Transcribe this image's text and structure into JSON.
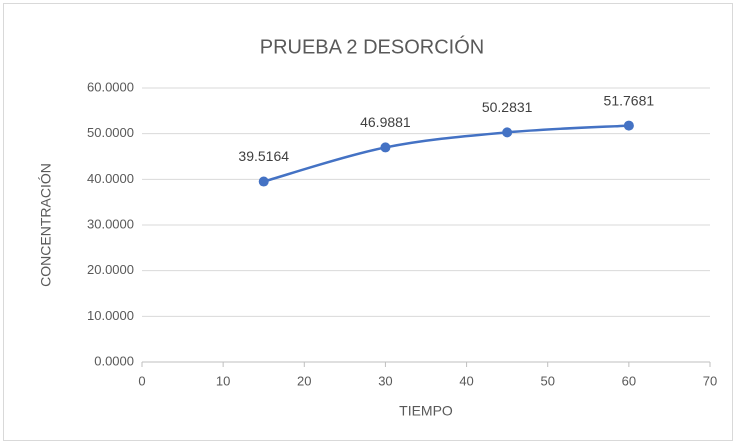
{
  "chart_data": {
    "type": "line",
    "title": "PRUEBA 2 DESORCIÓN",
    "x_label": "TIEMPO",
    "y_label": "CONCENTRACIÓN",
    "x": [
      15,
      30,
      45,
      60
    ],
    "values": [
      39.5164,
      46.9881,
      50.2831,
      51.7681
    ],
    "color": "#4472c4",
    "xlim": [
      0,
      70
    ],
    "xticks": [
      0,
      10,
      20,
      30,
      40,
      50,
      60,
      70
    ],
    "ylim": [
      0,
      60
    ],
    "yticks": [
      {
        "value": 0,
        "label": "0.0000"
      },
      {
        "value": 10,
        "label": "10.0000"
      },
      {
        "value": 20,
        "label": "20.0000"
      },
      {
        "value": 30,
        "label": "30.0000"
      },
      {
        "value": 40,
        "label": "40.0000"
      },
      {
        "value": 50,
        "label": "50.0000"
      },
      {
        "value": 60,
        "label": "60.0000"
      }
    ],
    "grid": true,
    "smooth": true
  }
}
